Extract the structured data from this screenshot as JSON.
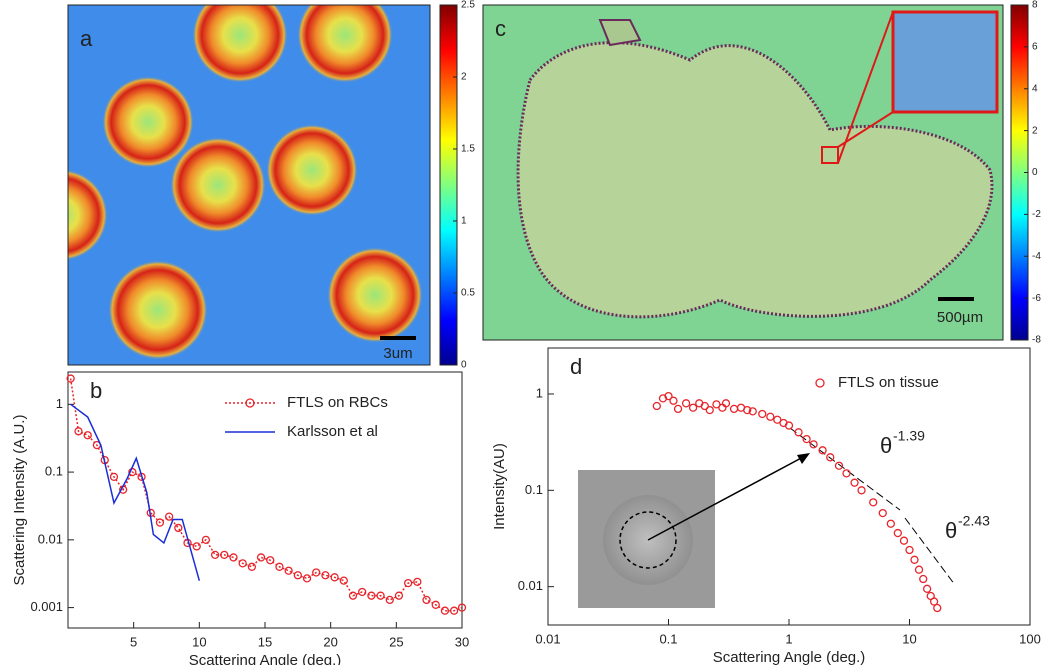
{
  "chart_data": [
    {
      "type": "heatmap",
      "panel_label": "a",
      "scale_bar_label": "3um",
      "clim": [
        0,
        2.5
      ],
      "cticks": [
        0,
        0.5,
        1,
        1.5,
        2,
        2.5
      ]
    },
    {
      "type": "line",
      "panel_label": "b",
      "xlabel": "Scattering Angle (deg.)",
      "ylabel": "Scattering Intensity (A.U.)",
      "xlim": [
        0,
        30
      ],
      "ylim": [
        0.0005,
        3
      ],
      "yscale": "log",
      "xticks": [
        5,
        10,
        15,
        20,
        25,
        30
      ],
      "yticks": [
        0.001,
        0.01,
        0.1,
        1
      ],
      "legend": "upper right",
      "series": [
        {
          "name": "FTLS on RBCs",
          "color": "#e8242a",
          "style": "markers-dotted",
          "x": [
            0.2,
            0.8,
            1.5,
            2.2,
            2.8,
            3.5,
            4.2,
            4.9,
            5.6,
            6.3,
            7,
            7.7,
            8.4,
            9.1,
            9.8,
            10.5,
            11.2,
            11.9,
            12.6,
            13.3,
            14,
            14.7,
            15.4,
            16.1,
            16.8,
            17.5,
            18.2,
            18.9,
            19.6,
            20.3,
            21,
            21.7,
            22.4,
            23.1,
            23.8,
            24.5,
            25.2,
            25.9,
            26.6,
            27.3,
            28,
            28.7,
            29.4,
            30
          ],
          "values": [
            2.4,
            0.4,
            0.35,
            0.25,
            0.15,
            0.085,
            0.055,
            0.1,
            0.085,
            0.025,
            0.018,
            0.022,
            0.015,
            0.009,
            0.008,
            0.01,
            0.006,
            0.006,
            0.0055,
            0.0045,
            0.004,
            0.0055,
            0.005,
            0.004,
            0.0035,
            0.003,
            0.0027,
            0.0033,
            0.003,
            0.0028,
            0.0025,
            0.0015,
            0.0017,
            0.0015,
            0.0015,
            0.0013,
            0.0015,
            0.0023,
            0.0024,
            0.0013,
            0.0011,
            0.0009,
            0.0009,
            0.001
          ]
        },
        {
          "name": "Karlsson et al",
          "color": "#1a2ed6",
          "style": "line",
          "x": [
            0.2,
            1.5,
            2.5,
            3.5,
            4.5,
            5.2,
            6,
            6.5,
            7.3,
            8,
            8.7,
            10
          ],
          "values": [
            1.0,
            0.65,
            0.25,
            0.035,
            0.08,
            0.16,
            0.05,
            0.012,
            0.009,
            0.02,
            0.02,
            0.0025
          ]
        }
      ]
    },
    {
      "type": "heatmap",
      "panel_label": "c",
      "scale_bar_label": "500µm",
      "clim": [
        -8,
        8
      ],
      "cticks": [
        -8,
        -6,
        -4,
        -2,
        0,
        2,
        4,
        6,
        8
      ]
    },
    {
      "type": "scatter",
      "panel_label": "d",
      "xlabel": "Scattering Angle (deg.)",
      "ylabel": "Intensity(AU)",
      "xlim": [
        0.01,
        100
      ],
      "ylim": [
        0.004,
        3
      ],
      "xscale": "log",
      "yscale": "log",
      "xticks": [
        0.01,
        0.1,
        1,
        10,
        100
      ],
      "yticks": [
        0.01,
        0.1,
        1
      ],
      "legend": "upper right",
      "annotations": [
        {
          "text": "θ",
          "sup": "-1.39"
        },
        {
          "text": "θ",
          "sup": "-2.43"
        }
      ],
      "series": [
        {
          "name": "FTLS on tissue",
          "color": "#e8242a",
          "x": [
            0.08,
            0.09,
            0.1,
            0.11,
            0.12,
            0.14,
            0.16,
            0.18,
            0.2,
            0.22,
            0.25,
            0.28,
            0.3,
            0.35,
            0.4,
            0.45,
            0.5,
            0.6,
            0.7,
            0.8,
            0.9,
            1.0,
            1.2,
            1.4,
            1.6,
            1.9,
            2.2,
            2.6,
            3,
            3.5,
            4,
            5,
            6,
            7,
            8,
            9,
            10,
            11,
            12,
            13,
            14,
            15,
            16,
            17
          ],
          "values": [
            0.75,
            0.9,
            0.95,
            0.85,
            0.7,
            0.8,
            0.72,
            0.8,
            0.75,
            0.68,
            0.78,
            0.72,
            0.8,
            0.7,
            0.72,
            0.68,
            0.66,
            0.62,
            0.58,
            0.54,
            0.5,
            0.47,
            0.4,
            0.34,
            0.3,
            0.26,
            0.22,
            0.18,
            0.15,
            0.12,
            0.1,
            0.075,
            0.058,
            0.045,
            0.036,
            0.03,
            0.024,
            0.019,
            0.015,
            0.012,
            0.0095,
            0.008,
            0.007,
            0.006
          ]
        }
      ]
    }
  ]
}
